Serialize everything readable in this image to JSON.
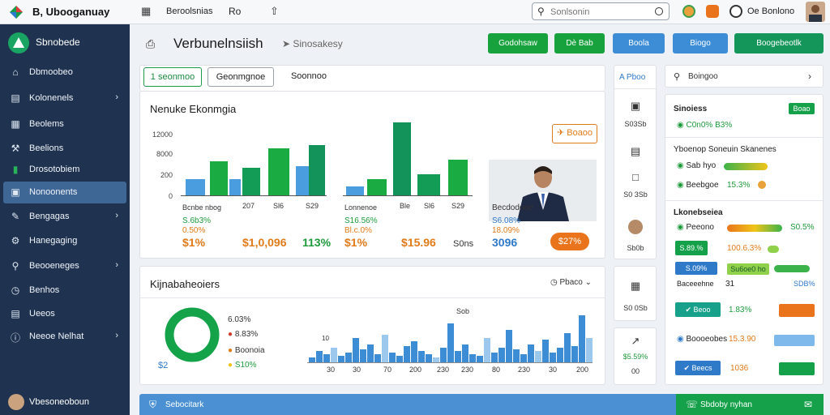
{
  "app": {
    "name": "B, Ubooganuay"
  },
  "topbar": {
    "nav_label": "Beroolsnias",
    "icon_label": "Ro",
    "search_placeholder": "Sonlsonin",
    "user_name": "Oe Bonlono",
    "accent_orange": "#e07b1a"
  },
  "sidebar": {
    "brand": "Sbnobede",
    "items": [
      {
        "label": "Dbmoobeo",
        "icon": "home-icon",
        "chevron": false
      },
      {
        "label": "Kolonenels",
        "icon": "book-icon",
        "chevron": true
      },
      {
        "label": "Beolems",
        "icon": "grid-icon",
        "chevron": false
      },
      {
        "label": "Beelions",
        "icon": "tools-icon",
        "chevron": false
      },
      {
        "label": "Drosotobiem",
        "icon": "chart-icon",
        "chevron": false
      },
      {
        "label": "Nonoonents",
        "icon": "panel-icon",
        "chevron": false,
        "active": true
      },
      {
        "label": "Bengagas",
        "icon": "edit-icon",
        "chevron": true
      },
      {
        "label": "Hanegaging",
        "icon": "gear-icon",
        "chevron": false
      },
      {
        "label": "Beooeneges",
        "icon": "search-icon",
        "chevron": true
      },
      {
        "label": "Benhos",
        "icon": "clock-icon",
        "chevron": false
      },
      {
        "label": "Ueeos",
        "icon": "doc-icon",
        "chevron": false
      },
      {
        "label": "Neeoe Nelhat",
        "icon": "info-icon",
        "chevron": true
      }
    ],
    "user": "Vbesoneoboun"
  },
  "header": {
    "title": "Verbunelnsiish",
    "crumb": "Sinosakesy",
    "buttons": [
      {
        "label": "Godohsaw",
        "color": "green"
      },
      {
        "label": "Dè Bab",
        "color": "green"
      },
      {
        "label": "Boola",
        "color": "blue"
      },
      {
        "label": "Biogo",
        "color": "blue"
      },
      {
        "label": "Boogebeotlk",
        "color": "dgreen"
      }
    ]
  },
  "tabs": [
    {
      "label": "1 seonmoo",
      "active": true
    },
    {
      "label": "Geonmgnoe",
      "active": false
    },
    {
      "label": "Soonnoo",
      "active": false
    }
  ],
  "panel1": {
    "title": "Nenuke Ekonmgia",
    "badge": "Boaoo",
    "y_ticks": [
      "12000",
      "8000",
      "200",
      "0"
    ],
    "groupA": {
      "ticks": [
        "Bcnbe nbog",
        "207",
        "Sl6",
        "S29"
      ],
      "green_note": "S.6b3%",
      "orange_note": "0.50%",
      "big1": "$1%",
      "big2": "$1,0,096",
      "big3": "113%"
    },
    "groupB": {
      "ticks": [
        "Lonnenoe",
        "Ble",
        "Sl6",
        "S29"
      ],
      "green_note": "S16.56%",
      "orange_note": "Bl.c.0%",
      "big1": "$1%",
      "big2": "$15.96",
      "big3": "S0ns"
    },
    "groupC": {
      "name": "Becdodooe",
      "blue_note": "S6.08%",
      "orange_note": "18.09%",
      "big": "3096",
      "pill": "$27%"
    }
  },
  "panel2": {
    "title": "Kijnabaheoiers",
    "filter": "Pbaco",
    "legend": [
      {
        "label": "6.03%",
        "dot": "#777777"
      },
      {
        "label": "8.83%",
        "dot": "#d43a2a"
      },
      {
        "label": "Boonoia",
        "dot": "#e07b1a"
      },
      {
        "label": "S10%",
        "dot": "#f0c419"
      }
    ],
    "donut_value": "$2",
    "peak_label": "Sob",
    "small_label": "10",
    "x_ticks": [
      "30",
      "30",
      "70",
      "200",
      "230",
      "230",
      "80",
      "230",
      "30",
      "200"
    ]
  },
  "col3": {
    "header": "Pboo",
    "items": [
      {
        "icon": "camera-icon",
        "text": "S03Sb"
      },
      {
        "icon": "calendar-icon",
        "text": ""
      },
      {
        "icon": "doc-icon",
        "text": "S0 3Sb"
      },
      {
        "icon": "",
        "text": "Sb0b"
      },
      {
        "icon": "building-icon",
        "text": "S0 0Sb"
      },
      {
        "icon": "trend-icon",
        "text": "$5.59%"
      },
      {
        "icon": "",
        "text": "00"
      }
    ]
  },
  "col4": {
    "dropdown": "Boingoo",
    "section1": {
      "title": "Sinoiess",
      "badge": "Boao",
      "row": "C0n0% B3%"
    },
    "section2": {
      "title": "Yboenop Soneuin Skanenes",
      "rows": [
        {
          "label": "Sab hyo",
          "value": ""
        },
        {
          "label": "Beebgoe",
          "value": "15.3%"
        }
      ]
    },
    "section3": {
      "title": "Lkonebseiea",
      "rows": [
        {
          "label": "Peeono",
          "value": "S0.5%"
        },
        {
          "label": "S.89.%",
          "value": "100.6.3%"
        },
        {
          "label": "S.09%",
          "value": "Su6oe0 ho"
        },
        {
          "label": "Baceeehne",
          "value": "SDB%"
        },
        {
          "label": "Beoo",
          "value": "1.83%"
        },
        {
          "label": "Boooeobes",
          "value": "15.3.90"
        },
        {
          "label": "Beecs",
          "value": "1036"
        }
      ],
      "small_number": "31"
    }
  },
  "footer": {
    "left_label": "Sebocitark",
    "right_label": "Sbdoby nyhan"
  }
}
